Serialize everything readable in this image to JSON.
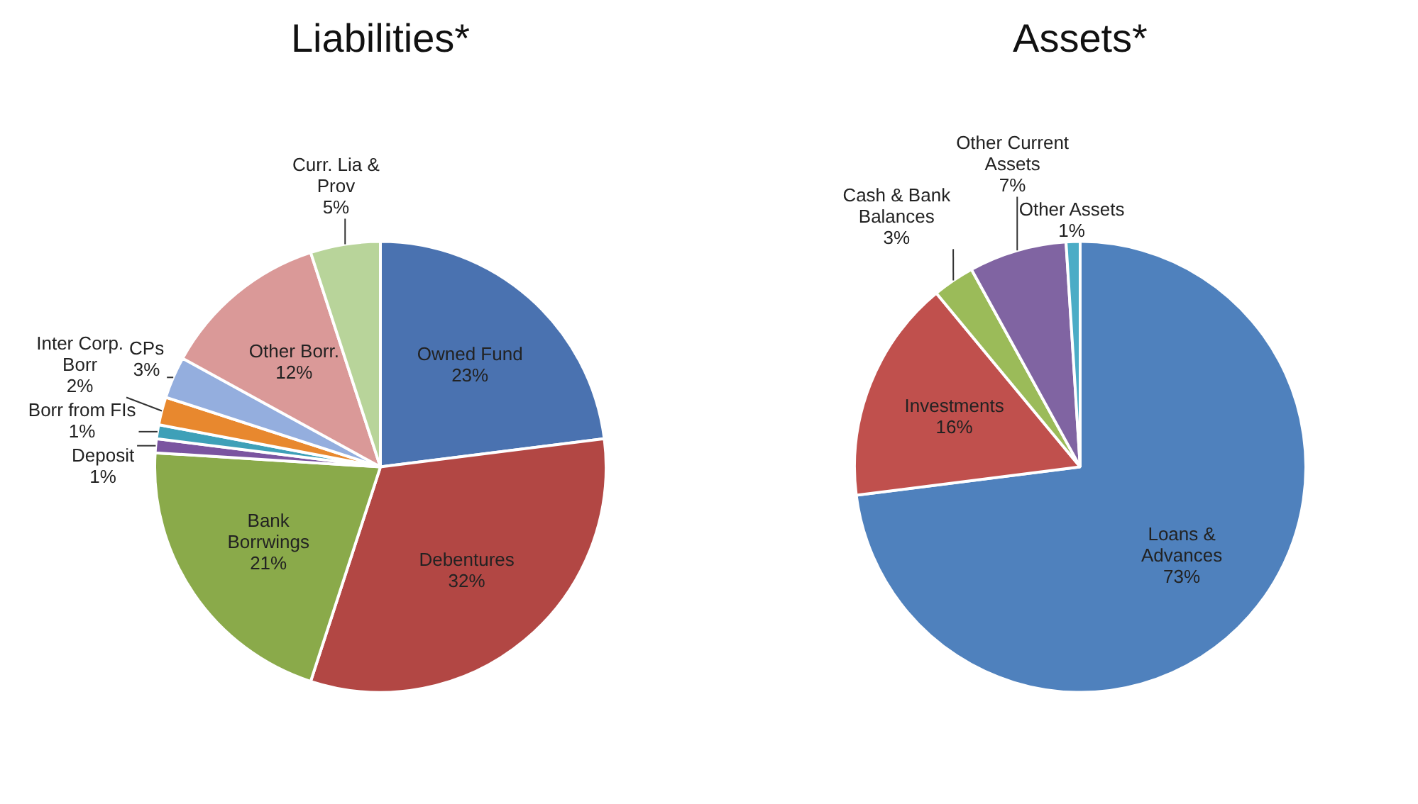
{
  "chart_data": [
    {
      "type": "pie",
      "title": "Liabilities*",
      "categories": [
        "Owned Fund",
        "Debentures",
        "Bank Borrwings",
        "Deposit",
        "Borr from FIs",
        "Inter Corp. Borr",
        "CPs",
        "Other Borr.",
        "Curr. Lia & Prov"
      ],
      "values": [
        23,
        32,
        21,
        1,
        1,
        2,
        3,
        12,
        5
      ],
      "colors": [
        "#4a72b0",
        "#b24744",
        "#8aaa4a",
        "#7a54a0",
        "#3ea0b8",
        "#e8882e",
        "#94aede",
        "#da9998",
        "#b8d49a"
      ],
      "value_labels": [
        "23%",
        "32%",
        "21%",
        "1%",
        "1%",
        "2%",
        "3%",
        "12%",
        "5%"
      ]
    },
    {
      "type": "pie",
      "title": "Assets*",
      "categories": [
        "Loans & Advances",
        "Investments",
        "Cash & Bank Balances",
        "Other Current Assets",
        "Other Assets"
      ],
      "values": [
        73,
        16,
        3,
        7,
        1
      ],
      "colors": [
        "#4f81bd",
        "#c0504d",
        "#9bbb59",
        "#8064a2",
        "#4bacc6"
      ],
      "value_labels": [
        "73%",
        "16%",
        "3%",
        "7%",
        "1%"
      ]
    }
  ]
}
